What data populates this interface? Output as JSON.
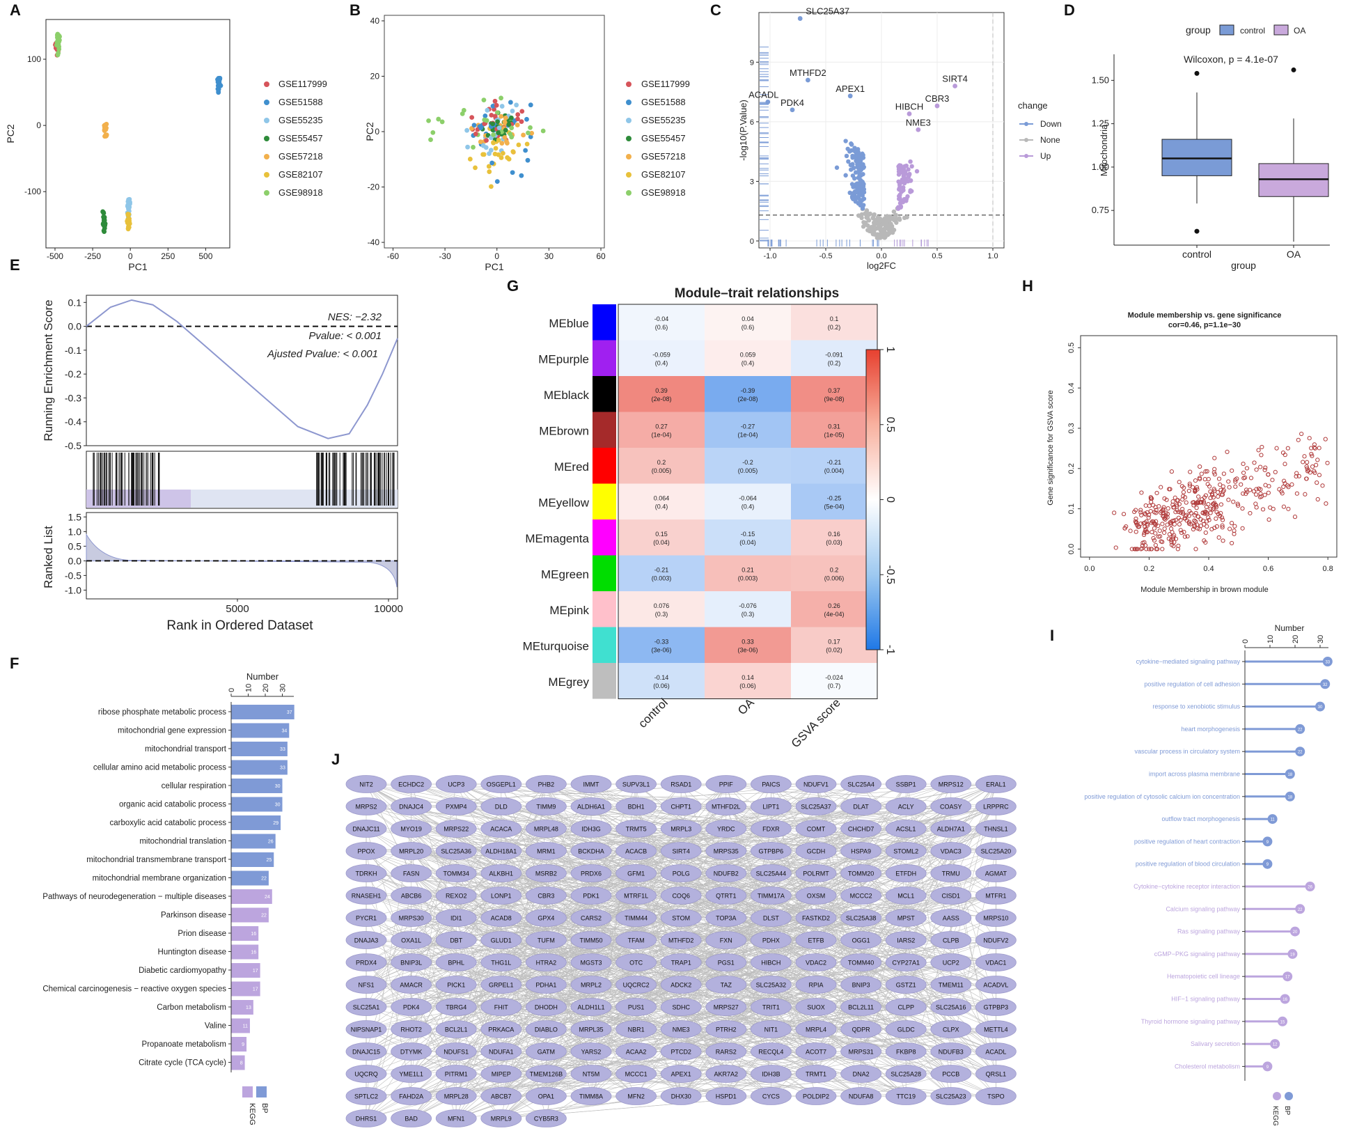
{
  "panels": {
    "A": {
      "label": "A",
      "xlabel": "PC1",
      "ylabel": "PC2",
      "xticks": [
        "-500",
        "-250",
        "0",
        "250",
        "500"
      ],
      "yticks": [
        "100",
        "0",
        "-100"
      ]
    },
    "B": {
      "label": "B",
      "xlabel": "PC1",
      "ylabel": "PC2",
      "xticks": [
        "-60",
        "-30",
        "0",
        "30",
        "60"
      ],
      "yticks": [
        "40",
        "20",
        "0",
        "-20",
        "-40"
      ]
    },
    "C": {
      "label": "C",
      "xlabel": "log2FC",
      "ylabel": "-log10(P.Value)",
      "xticks": [
        "-1.0",
        "-0.5",
        "0.0",
        "0.5",
        "1.0"
      ],
      "yticks": [
        "9",
        "6",
        "3",
        "0"
      ],
      "legend_title": "change",
      "legend_items": [
        "Down",
        "None",
        "Up"
      ]
    },
    "D": {
      "label": "D",
      "xlabel": "group",
      "ylabel": "Mitochondria",
      "legend_title": "group",
      "legend_items": [
        "control",
        "OA"
      ],
      "annotation": "Wilcoxon, p = 4.1e-07",
      "yticks": [
        "1.50",
        "1.25",
        "1.00",
        "0.75"
      ],
      "categories": [
        "control",
        "OA"
      ]
    },
    "E": {
      "label": "E",
      "ylabel_top": "Running Enrichment Score",
      "ylabel_bottom": "Ranked List",
      "xlabel": "Rank in Ordered Dataset",
      "nes": "NES: −2.32",
      "pvalue": "Pvalue: < 0.001",
      "adj": "Ajusted Pvalue: < 0.001",
      "yticks_top": [
        "0.1",
        "0.0",
        "-0.1",
        "-0.2",
        "-0.3",
        "-0.4",
        "-0.5"
      ],
      "yticks_bottom": [
        "1.5",
        "1.0",
        "0.5",
        "0.0",
        "-0.5",
        "-1.0"
      ],
      "xticks": [
        "5000",
        "10000"
      ]
    },
    "F": {
      "label": "F",
      "axis_title": "Number",
      "ticks": [
        "0",
        "10",
        "20",
        "30"
      ],
      "legend_items": [
        "KEGG",
        "BP"
      ]
    },
    "G": {
      "label": "G",
      "title": "Module–trait relationships",
      "colorbar_ticks": [
        "1",
        "0.5",
        "0",
        "-0.5",
        "-1"
      ]
    },
    "H": {
      "label": "H",
      "title": "Module membership vs. gene significance",
      "subtitle": "cor=0.46, p=1.1e−30",
      "xlabel": "Module Membership in brown module",
      "ylabel": "Gene significance for GSVA score",
      "xticks": [
        "0.0",
        "0.2",
        "0.4",
        "0.6",
        "0.8"
      ],
      "yticks": [
        "0.5",
        "0.4",
        "0.3",
        "0.2",
        "0.1",
        "0.0"
      ]
    },
    "I": {
      "label": "I",
      "axis_title": "Number",
      "ticks": [
        "0",
        "10",
        "20",
        "30"
      ],
      "legend_items": [
        "KEGG",
        "BP"
      ]
    },
    "J": {
      "label": "J"
    }
  },
  "chart_data": [
    {
      "panel": "A",
      "type": "scatter",
      "xlabel": "PC1",
      "ylabel": "PC2",
      "xlim": [
        -560,
        660
      ],
      "ylim": [
        -185,
        160
      ],
      "legend": [
        "GSE117999",
        "GSE51588",
        "GSE55235",
        "GSE55457",
        "GSE57218",
        "GSE82107",
        "GSE98918"
      ],
      "colors": [
        "#d6545a",
        "#3f8fce",
        "#8fc6e8",
        "#2e8b3a",
        "#f2b04c",
        "#e8c13b",
        "#8ccf6a"
      ],
      "clusters": [
        {
          "series": "GSE117999",
          "x": -490,
          "y": 120
        },
        {
          "series": "GSE98918",
          "x": -480,
          "y": 125
        },
        {
          "series": "GSE51588",
          "x": 590,
          "y": 60
        },
        {
          "series": "GSE57218",
          "x": -165,
          "y": -8
        },
        {
          "series": "GSE55235",
          "x": -10,
          "y": -125
        },
        {
          "series": "GSE55457",
          "x": -175,
          "y": -145
        },
        {
          "series": "GSE82107",
          "x": -12,
          "y": -148
        }
      ]
    },
    {
      "panel": "B",
      "type": "scatter",
      "xlabel": "PC1",
      "ylabel": "PC2",
      "xlim": [
        -65,
        62
      ],
      "ylim": [
        -42,
        42
      ],
      "legend": [
        "GSE117999",
        "GSE51588",
        "GSE55235",
        "GSE55457",
        "GSE57218",
        "GSE82107",
        "GSE98918"
      ]
    },
    {
      "panel": "C",
      "type": "scatter",
      "xlabel": "log2FC",
      "ylabel": "-log10(P.Value)",
      "xlim": [
        -1.1,
        1.1
      ],
      "ylim": [
        0,
        11.5
      ],
      "labels": [
        {
          "gene": "SLC25A37",
          "x": -0.73,
          "y": 11.2
        },
        {
          "gene": "MTHFD2",
          "x": -0.66,
          "y": 8.1
        },
        {
          "gene": "ACADL",
          "x": -1.02,
          "y": 7.0
        },
        {
          "gene": "PDK4",
          "x": -0.8,
          "y": 6.6
        },
        {
          "gene": "APEX1",
          "x": -0.28,
          "y": 7.3
        },
        {
          "gene": "SIRT4",
          "x": 0.66,
          "y": 7.8
        },
        {
          "gene": "CBR3",
          "x": 0.5,
          "y": 6.8
        },
        {
          "gene": "HIBCH",
          "x": 0.25,
          "y": 6.4
        },
        {
          "gene": "NME3",
          "x": 0.33,
          "y": 5.6
        }
      ],
      "threshold_y": 1.3
    },
    {
      "panel": "D",
      "type": "box",
      "categories": [
        "control",
        "OA"
      ],
      "ylabel": "Mitochondria",
      "ylim": [
        0.55,
        1.65
      ],
      "boxes": [
        {
          "name": "control",
          "q1": 0.95,
          "median": 1.05,
          "q3": 1.16,
          "lower": 0.79,
          "upper": 1.43,
          "outliers": [
            1.54,
            0.63
          ]
        },
        {
          "name": "OA",
          "q1": 0.83,
          "median": 0.93,
          "q3": 1.02,
          "lower": 0.57,
          "upper": 1.28,
          "outliers": [
            1.56
          ]
        }
      ]
    },
    {
      "panel": "E",
      "type": "line",
      "xlabel": "Rank in Ordered Dataset",
      "ylabel": "Running Enrichment Score",
      "x": [
        0,
        800,
        1500,
        2200,
        3000,
        4000,
        5000,
        6000,
        7000,
        8000,
        8700,
        9300,
        9800,
        10300
      ],
      "y": [
        0.0,
        0.08,
        0.11,
        0.09,
        0.02,
        -0.09,
        -0.2,
        -0.31,
        -0.42,
        -0.47,
        -0.45,
        -0.33,
        -0.2,
        -0.05
      ]
    },
    {
      "panel": "F",
      "type": "bar",
      "orientation": "horizontal",
      "xlabel": "Number",
      "categories": [
        "ribose phosphate metabolic process",
        "mitochondrial gene expression",
        "mitochondrial transport",
        "cellular amino acid metabolic process",
        "cellular respiration",
        "organic acid catabolic process",
        "carboxylic acid catabolic process",
        "mitochondrial translation",
        "mitochondrial transmembrane transport",
        "mitochondrial membrane organization",
        "Pathways of neurodegeneration − multiple diseases",
        "Parkinson disease",
        "Prion disease",
        "Huntington disease",
        "Diabetic cardiomyopathy",
        "Chemical carcinogenesis − reactive oxygen species",
        "Carbon metabolism",
        "Valine",
        "Propanoate metabolism",
        "Citrate cycle (TCA cycle)"
      ],
      "values": [
        37,
        34,
        33,
        33,
        30,
        30,
        29,
        26,
        25,
        22,
        24,
        22,
        16,
        16,
        17,
        17,
        13,
        11,
        9,
        8
      ],
      "groups": [
        "BP",
        "BP",
        "BP",
        "BP",
        "BP",
        "BP",
        "BP",
        "BP",
        "BP",
        "BP",
        "KEGG",
        "KEGG",
        "KEGG",
        "KEGG",
        "KEGG",
        "KEGG",
        "KEGG",
        "KEGG",
        "KEGG",
        "KEGG"
      ]
    },
    {
      "panel": "G",
      "type": "heatmap",
      "title": "Module–trait relationships",
      "rows": [
        "MEblue",
        "MEpurple",
        "MEblack",
        "MEbrown",
        "MEred",
        "MEyellow",
        "MEmagenta",
        "MEgreen",
        "MEpink",
        "MEturquoise",
        "MEgrey"
      ],
      "row_colors": [
        "#0000ff",
        "#a020f0",
        "#000000",
        "#a52a2a",
        "#ff0000",
        "#ffff00",
        "#ff00ff",
        "#00dd00",
        "#ffc0cb",
        "#40e0d0",
        "#bebebe"
      ],
      "columns": [
        "control",
        "OA",
        "GSVA score"
      ],
      "values": [
        [
          -0.04,
          0.04,
          0.1
        ],
        [
          -0.059,
          0.059,
          -0.091
        ],
        [
          0.39,
          -0.39,
          0.37
        ],
        [
          0.27,
          -0.27,
          0.31
        ],
        [
          0.2,
          -0.2,
          -0.21
        ],
        [
          0.064,
          -0.064,
          -0.25
        ],
        [
          0.15,
          -0.15,
          0.16
        ],
        [
          -0.21,
          0.21,
          0.2
        ],
        [
          0.076,
          -0.076,
          0.26
        ],
        [
          -0.33,
          0.33,
          0.17
        ],
        [
          -0.14,
          0.14,
          -0.024
        ]
      ],
      "pvalues": [
        [
          "(0.6)",
          "(0.6)",
          "(0.2)"
        ],
        [
          "(0.4)",
          "(0.4)",
          "(0.2)"
        ],
        [
          "(2e-08)",
          "(2e-08)",
          "(9e-08)"
        ],
        [
          "(1e-04)",
          "(1e-04)",
          "(1e-05)"
        ],
        [
          "(0.005)",
          "(0.005)",
          "(0.004)"
        ],
        [
          "(0.4)",
          "(0.4)",
          "(5e-04)"
        ],
        [
          "(0.04)",
          "(0.04)",
          "(0.03)"
        ],
        [
          "(0.003)",
          "(0.003)",
          "(0.006)"
        ],
        [
          "(0.3)",
          "(0.3)",
          "(4e-04)"
        ],
        [
          "(3e-06)",
          "(3e-06)",
          "(0.02)"
        ],
        [
          "(0.06)",
          "(0.06)",
          "(0.7)"
        ]
      ],
      "labels": [
        [
          "-0.04",
          "0.04",
          "0.1"
        ],
        [
          "-0.059",
          "0.059",
          "-0.091"
        ],
        [
          "0.39",
          "-0.39",
          "0.37"
        ],
        [
          "0.27",
          "-0.27",
          "0.31"
        ],
        [
          "0.2",
          "-0.2",
          "-0.21"
        ],
        [
          "0.064",
          "-0.064",
          "-0.25"
        ],
        [
          "0.15",
          "-0.15",
          "0.16"
        ],
        [
          "-0.21",
          "0.21",
          "0.2"
        ],
        [
          "0.076",
          "-0.076",
          "0.26"
        ],
        [
          "-0.33",
          "0.33",
          "0.17"
        ],
        [
          "-0.14",
          "0.14",
          "-0.024"
        ]
      ],
      "zlim": [
        -1,
        1
      ]
    },
    {
      "panel": "H",
      "type": "scatter",
      "xlabel": "Module Membership in brown module",
      "ylabel": "Gene significance for GSVA score",
      "xlim": [
        -0.03,
        0.83
      ],
      "ylim": [
        -0.02,
        0.53
      ],
      "correlation": 0.46,
      "n_points_approx": 420
    },
    {
      "panel": "I",
      "type": "bar",
      "orientation": "horizontal",
      "style": "lollipop",
      "xlabel": "Number",
      "categories": [
        "cytokine−mediated signaling pathway",
        "positive regulation of cell adhesion",
        "response to xenobiotic stimulus",
        "heart morphogenesis",
        "vascular process in circulatory system",
        "import across plasma membrane",
        "positive regulation of cytosolic calcium ion concentration",
        "outflow tract morphogenesis",
        "positive regulation of heart contraction",
        "positive regulation of blood circulation",
        "Cytokine−cytokine receptor interaction",
        "Calcium signaling pathway",
        "Ras signaling pathway",
        "cGMP−PKG signaling pathway",
        "Hematopoietic cell lineage",
        "HIF−1 signaling pathway",
        "Thyroid hormone signaling pathway",
        "Salivary secretion",
        "Cholesterol metabolism"
      ],
      "values": [
        33,
        32,
        30,
        22,
        22,
        18,
        18,
        11,
        9,
        9,
        26,
        22,
        20,
        19,
        17,
        16,
        15,
        12,
        9
      ],
      "groups": [
        "BP",
        "BP",
        "BP",
        "BP",
        "BP",
        "BP",
        "BP",
        "BP",
        "BP",
        "BP",
        "KEGG",
        "KEGG",
        "KEGG",
        "KEGG",
        "KEGG",
        "KEGG",
        "KEGG",
        "KEGG",
        "KEGG"
      ]
    },
    {
      "panel": "J",
      "type": "network",
      "rows": [
        [
          "NIT2",
          "ECHDC2",
          "UCP3",
          "OSGEPL1",
          "PHB2",
          "IMMT",
          "SUPV3L1",
          "RSAD1",
          "PPIF",
          "PAICS",
          "NDUFV1",
          "SLC25A4",
          "SSBP1",
          "MRPS12",
          "ERAL1"
        ],
        [
          "MRPS2",
          "DNAJC4",
          "PXMP4",
          "DLD",
          "TIMM9",
          "ALDH6A1",
          "BDH1",
          "CHPT1",
          "MTHFD2L",
          "LIPT1",
          "SLC25A37",
          "DLAT",
          "ACLY",
          "COASY",
          "LRPPRC"
        ],
        [
          "DNAJC11",
          "MYO19",
          "MRPS22",
          "ACACA",
          "MRPL48",
          "IDH3G",
          "TRMT5",
          "MRPL3",
          "YRDC",
          "FDXR",
          "COMT",
          "CHCHD7",
          "ACSL1",
          "ALDH7A1",
          "THNSL1"
        ],
        [
          "PPOX",
          "MRPL20",
          "SLC25A36",
          "ALDH18A1",
          "MRM1",
          "BCKDHA",
          "ACACB",
          "SIRT4",
          "MRPS35",
          "GTPBP6",
          "GCDH",
          "HSPA9",
          "STOML2",
          "VDAC3",
          "SLC25A20"
        ],
        [
          "TDRKH",
          "FASN",
          "TOMM34",
          "ALKBH1",
          "MSRB2",
          "PRDX6",
          "GFM1",
          "POLG",
          "NDUFB2",
          "SLC25A44",
          "POLRMT",
          "TOMM20",
          "ETFDH",
          "TRMU",
          "AGMAT"
        ],
        [
          "RNASEH1",
          "ABCB6",
          "REXO2",
          "LONP1",
          "CBR3",
          "PDK1",
          "MTRF1L",
          "COQ6",
          "QTRT1",
          "TIMM17A",
          "OXSM",
          "MCCC2",
          "MCL1",
          "CISD1",
          "MTFR1"
        ],
        [
          "PYCR1",
          "MRPS30",
          "IDI1",
          "ACAD8",
          "GPX4",
          "CARS2",
          "TIMM44",
          "STOM",
          "TOP3A",
          "DLST",
          "FASTKD2",
          "SLC25A38",
          "MPST",
          "AASS",
          "MRPS10"
        ],
        [
          "DNAJA3",
          "OXA1L",
          "DBT",
          "GLUD1",
          "TUFM",
          "TIMM50",
          "TFAM",
          "MTHFD2",
          "FXN",
          "PDHX",
          "ETFB",
          "OGG1",
          "IARS2",
          "CLPB",
          "NDUFV2"
        ],
        [
          "PRDX4",
          "BNIP3L",
          "BPHL",
          "THG1L",
          "HTRA2",
          "MGST3",
          "OTC",
          "TRAP1",
          "PGS1",
          "HIBCH",
          "VDAC2",
          "TOMM40",
          "CYP27A1",
          "UCP2",
          "VDAC1"
        ],
        [
          "NFS1",
          "AMACR",
          "PICK1",
          "GRPEL1",
          "PDHA1",
          "MRPL2",
          "UQCRC2",
          "ADCK2",
          "TAZ",
          "SLC25A32",
          "RPIA",
          "BNIP3",
          "GSTZ1",
          "TMEM11",
          "ACADVL"
        ],
        [
          "SLC25A1",
          "PDK4",
          "TBRG4",
          "FHIT",
          "DHODH",
          "ALDH1L1",
          "PUS1",
          "SDHC",
          "MRPS27",
          "TRIT1",
          "SUOX",
          "BCL2L11",
          "CLPP",
          "SLC25A16",
          "GTPBP3"
        ],
        [
          "NIPSNAP1",
          "RHOT2",
          "BCL2L1",
          "PRKACA",
          "DIABLO",
          "MRPL35",
          "NBR1",
          "NME3",
          "PTRH2",
          "NIT1",
          "MRPL4",
          "QDPR",
          "GLDC",
          "CLPX",
          "METTL4"
        ],
        [
          "DNAJC15",
          "DTYMK",
          "NDUFS1",
          "NDUFA1",
          "GATM",
          "YARS2",
          "ACAA2",
          "PTCD2",
          "RARS2",
          "RECQL4",
          "ACOT7",
          "MRPS31",
          "FKBP8",
          "NDUFB3",
          "ACADL"
        ],
        [
          "UQCRQ",
          "YME1L1",
          "PITRM1",
          "MIPEP",
          "TMEM126B",
          "NT5M",
          "MCCC1",
          "APEX1",
          "AKR7A2",
          "IDH3B",
          "TRMT1",
          "DNA2",
          "SLC25A28",
          "PCCB",
          "QRSL1"
        ],
        [
          "SPTLC2",
          "FAHD2A",
          "MRPL28",
          "ABCB7",
          "OPA1",
          "TIMM8A",
          "MFN2",
          "DHX30",
          "HSPD1",
          "CYCS",
          "POLDIP2",
          "NDUFA8",
          "TTC19",
          "SLC25A23",
          "TSPO"
        ],
        [
          "DHRS1",
          "BAD",
          "MFN1",
          "MRPL9",
          "CYB5R3"
        ]
      ]
    }
  ]
}
